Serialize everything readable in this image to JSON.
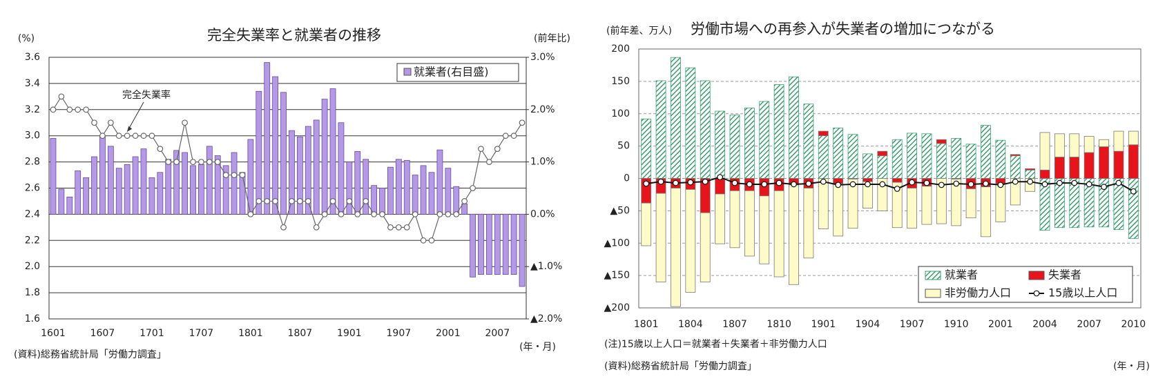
{
  "chart_data": [
    {
      "type": "combo",
      "title": "完全失業率と就業者の推移",
      "y_label": "(%)",
      "y2_label": "(前年比)",
      "x_label": "(年・月)",
      "source": "(資料)総務省統計局「労働力調査」",
      "categories": [
        "1601",
        null,
        null,
        null,
        null,
        null,
        "1607",
        null,
        null,
        null,
        null,
        null,
        "1701",
        null,
        null,
        null,
        null,
        null,
        "1707",
        null,
        null,
        null,
        null,
        null,
        "1801",
        null,
        null,
        null,
        null,
        null,
        "1807",
        null,
        null,
        null,
        null,
        null,
        "1901",
        null,
        null,
        null,
        null,
        null,
        "1907",
        null,
        null,
        null,
        null,
        null,
        "2001",
        null,
        null,
        null,
        null,
        null,
        "2007",
        null,
        null,
        null
      ],
      "ylim": [
        1.6,
        3.6
      ],
      "yticks": [
        1.6,
        1.8,
        {
          "value": 2,
          "label": "2.0"
        },
        2.2,
        2.4,
        2.6,
        2.8,
        {
          "value": 3,
          "label": "3.0"
        },
        3.2,
        3.4,
        3.6
      ],
      "y2lim": [
        -2,
        3
      ],
      "y2ticks": [
        {
          "value": 3,
          "label": "3.0%"
        },
        {
          "value": 2,
          "label": "2.0%"
        },
        {
          "value": 1,
          "label": "1.0%"
        },
        {
          "value": 0,
          "label": "0.0%"
        },
        {
          "value": -1,
          "label": "▲1.0%"
        },
        {
          "value": -2,
          "label": "▲2.0%"
        }
      ],
      "grid": true,
      "legend": "top-right",
      "series": [
        {
          "name": "就業者(右目盛)",
          "type": "bar",
          "axis": "y2",
          "color": "#b49ae6",
          "values": [
            1.45,
            0.48,
            0.33,
            0.83,
            0.7,
            1.1,
            1.5,
            1.3,
            0.88,
            0.95,
            1.1,
            1.25,
            0.7,
            0.8,
            1.05,
            1.22,
            1.18,
            0.93,
            0.95,
            1.3,
            1.12,
            0.93,
            1.18,
            0.8,
            1.43,
            2.35,
            2.9,
            2.63,
            2.33,
            1.6,
            1.48,
            1.68,
            1.8,
            2.2,
            2.4,
            1.75,
            1.0,
            1.2,
            1.05,
            0.55,
            0.5,
            0.9,
            1.05,
            1.03,
            0.75,
            0.93,
            0.8,
            1.23,
            0.88,
            0.53,
            0.2,
            -1.2,
            -1.15,
            -1.15,
            -1.15,
            -1.15,
            -1.15,
            -1.38
          ]
        },
        {
          "name": "完全失業率",
          "type": "line",
          "color": "#666666",
          "legend": false,
          "values": [
            3.2,
            3.3,
            3.2,
            3.2,
            3.2,
            3.1,
            3.0,
            3.1,
            3.0,
            3.0,
            3.0,
            3.0,
            3.0,
            2.9,
            2.8,
            2.8,
            3.1,
            2.8,
            2.8,
            2.8,
            2.8,
            2.7,
            2.7,
            2.7,
            2.4,
            2.5,
            2.5,
            2.5,
            2.3,
            2.5,
            2.5,
            2.5,
            2.3,
            2.4,
            2.5,
            2.4,
            2.5,
            2.4,
            2.5,
            2.4,
            2.4,
            2.3,
            2.3,
            2.3,
            2.4,
            2.2,
            2.2,
            2.4,
            2.4,
            2.4,
            2.5,
            2.6,
            2.9,
            2.8,
            2.9,
            3.0,
            3.0,
            3.1
          ]
        }
      ]
    },
    {
      "type": "combo",
      "title": "労働市場への再参入が失業者の増加につながる",
      "y_label": "(前年差、万人)",
      "x_label": "(年・月)",
      "note": "(注)15歳以上人口＝就業者＋失業者＋非労働力人口",
      "source": "(資料)総務省統計局「労働力調査」",
      "categories": [
        "1801",
        null,
        null,
        "1804",
        null,
        null,
        "1807",
        null,
        null,
        "1810",
        null,
        null,
        "1901",
        null,
        null,
        "1904",
        null,
        null,
        "1907",
        null,
        null,
        "1910",
        null,
        null,
        "2001",
        null,
        null,
        "2004",
        null,
        null,
        "2007",
        null,
        null,
        "2010"
      ],
      "ylim": [
        -200,
        200
      ],
      "yticks": [
        200,
        150,
        100,
        50,
        0,
        {
          "value": -50,
          "label": "▲50"
        },
        {
          "value": -100,
          "label": "▲100"
        },
        {
          "value": -150,
          "label": "▲150"
        },
        {
          "value": -200,
          "label": "▲200"
        }
      ],
      "grid": true,
      "stacked": true,
      "legend": "bottom-right",
      "series": [
        {
          "name": "就業者",
          "type": "bar",
          "color": "#3a9e6e",
          "hatch": true,
          "values": [
            92,
            151,
            187,
            171,
            151,
            104,
            98,
            109,
            119,
            145,
            157,
            115,
            66,
            78,
            68,
            38,
            35,
            60,
            70,
            69,
            54,
            62,
            53,
            82,
            59,
            35,
            13,
            -80,
            -76,
            -76,
            -75,
            -75,
            -79,
            -93
          ]
        },
        {
          "name": "失業者",
          "type": "bar",
          "color": "#e8141b",
          "values": [
            -38,
            -23,
            -15,
            -17,
            -53,
            -24,
            -19,
            -19,
            -27,
            -19,
            -10,
            -15,
            7,
            -8,
            -1,
            -5,
            7,
            -6,
            -15,
            -12,
            6,
            -1,
            -16,
            -13,
            -8,
            2,
            2,
            13,
            33,
            33,
            40,
            49,
            42,
            52
          ]
        },
        {
          "name": "非労働力人口",
          "type": "bar",
          "color": "#fdfbc8",
          "values": [
            -66,
            -137,
            -183,
            -159,
            -107,
            -77,
            -88,
            -101,
            -105,
            -133,
            -154,
            -108,
            -78,
            -81,
            -76,
            -41,
            -50,
            -70,
            -62,
            -59,
            -70,
            -72,
            -45,
            -77,
            -59,
            -41,
            -20,
            58,
            36,
            36,
            25,
            11,
            31,
            21
          ]
        },
        {
          "name": "15歳以上人口",
          "type": "line",
          "color": "#111111",
          "values": [
            -8,
            -5,
            -7,
            -6,
            -5,
            2,
            -7,
            -9,
            -9,
            -7,
            -9,
            -8,
            -5,
            -10,
            -9,
            -9,
            -9,
            -16,
            -6,
            -7,
            -10,
            -8,
            -9,
            -8,
            -10,
            -5,
            -5,
            -9,
            -7,
            -7,
            -9,
            -13,
            -7,
            -20
          ]
        }
      ]
    }
  ]
}
